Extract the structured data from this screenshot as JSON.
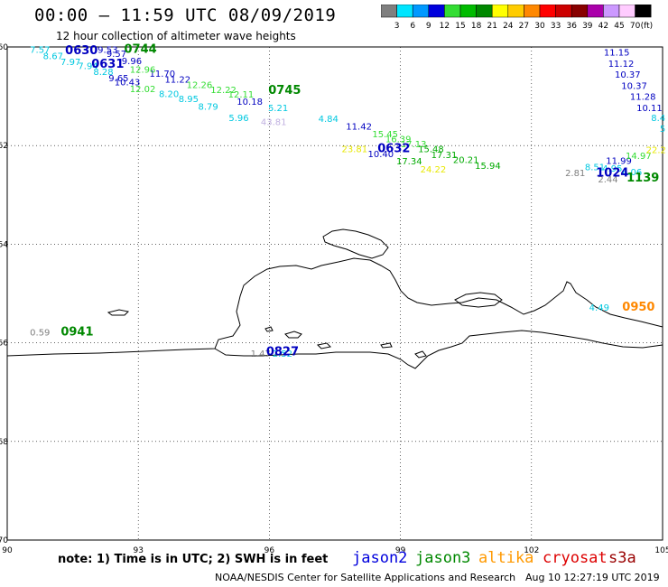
{
  "header": {
    "title": "00:00 – 11:59 UTC 08/09/2019",
    "subtitle": "12 hour collection of altimeter wave heights"
  },
  "legend": {
    "unit": "(ft)",
    "bins": [
      {
        "label": "3",
        "color": "#7f7f7f"
      },
      {
        "label": "6",
        "color": "#00e5ff"
      },
      {
        "label": "9",
        "color": "#0099ff"
      },
      {
        "label": "12",
        "color": "#0000dd"
      },
      {
        "label": "15",
        "color": "#33dd33"
      },
      {
        "label": "18",
        "color": "#00bb00"
      },
      {
        "label": "21",
        "color": "#008800"
      },
      {
        "label": "24",
        "color": "#ffff00"
      },
      {
        "label": "27",
        "color": "#ffcc00"
      },
      {
        "label": "30",
        "color": "#ff8800"
      },
      {
        "label": "33",
        "color": "#ff0000"
      },
      {
        "label": "36",
        "color": "#cc0000"
      },
      {
        "label": "39",
        "color": "#880000"
      },
      {
        "label": "42",
        "color": "#aa00aa"
      },
      {
        "label": "45",
        "color": "#cc99ff"
      },
      {
        "label": "70",
        "color": "#ffccff"
      },
      {
        "label": "",
        "color": "#000000"
      }
    ]
  },
  "axes": {
    "lon_ticks": [
      "90",
      "93",
      "96",
      "99",
      "102",
      "105"
    ],
    "lat_ticks": [
      "-60",
      "-62",
      "-64",
      "-66",
      "-68",
      "-70"
    ]
  },
  "observations": [
    {
      "text": "7.57",
      "lon": 90.75,
      "lat": -60.12,
      "color": "#00c8e0"
    },
    {
      "text": "8.67",
      "lon": 91.05,
      "lat": -60.25,
      "color": "#00c8e0"
    },
    {
      "text": "7.97",
      "lon": 91.45,
      "lat": -60.37,
      "color": "#00c8e0"
    },
    {
      "text": "7.94",
      "lon": 91.85,
      "lat": -60.45,
      "color": "#00c8e0"
    },
    {
      "text": "8.28",
      "lon": 92.2,
      "lat": -60.57,
      "color": "#00c8e0"
    },
    {
      "text": "9.53",
      "lon": 92.3,
      "lat": -60.12,
      "color": "#0000c0"
    },
    {
      "text": "9.57",
      "lon": 92.5,
      "lat": -60.2,
      "color": "#0000c0"
    },
    {
      "text": "9.96",
      "lon": 92.85,
      "lat": -60.35,
      "color": "#0000c0"
    },
    {
      "text": "9.65",
      "lon": 92.55,
      "lat": -60.7,
      "color": "#0000c0"
    },
    {
      "text": "10.43",
      "lon": 92.75,
      "lat": -60.78,
      "color": "#0000c0"
    },
    {
      "text": "11.70",
      "lon": 93.55,
      "lat": -60.6,
      "color": "#0000c0"
    },
    {
      "text": "11.22",
      "lon": 93.9,
      "lat": -60.72,
      "color": "#0000c0"
    },
    {
      "text": "12.96",
      "lon": 93.1,
      "lat": -60.52,
      "color": "#33dd33"
    },
    {
      "text": "12.02",
      "lon": 93.1,
      "lat": -60.92,
      "color": "#33dd33"
    },
    {
      "text": "8.20",
      "lon": 93.7,
      "lat": -61.02,
      "color": "#00c8e0"
    },
    {
      "text": "8.95",
      "lon": 94.15,
      "lat": -61.12,
      "color": "#00c8e0"
    },
    {
      "text": "8.79",
      "lon": 94.6,
      "lat": -61.27,
      "color": "#00c8e0"
    },
    {
      "text": "12.26",
      "lon": 94.4,
      "lat": -60.83,
      "color": "#33dd33"
    },
    {
      "text": "12.22",
      "lon": 94.95,
      "lat": -60.93,
      "color": "#33dd33"
    },
    {
      "text": "12.11",
      "lon": 95.35,
      "lat": -61.03,
      "color": "#33dd33"
    },
    {
      "text": "10.18",
      "lon": 95.55,
      "lat": -61.17,
      "color": "#0000c0"
    },
    {
      "text": "5.21",
      "lon": 96.2,
      "lat": -61.3,
      "color": "#00c8e0"
    },
    {
      "text": "5.96",
      "lon": 95.3,
      "lat": -61.5,
      "color": "#00c8e0"
    },
    {
      "text": "43.81",
      "lon": 96.1,
      "lat": -61.58,
      "color": "#c0b0e0"
    },
    {
      "text": "4.84",
      "lon": 97.35,
      "lat": -61.52,
      "color": "#00c8e0"
    },
    {
      "text": "11.42",
      "lon": 98.05,
      "lat": -61.68,
      "color": "#0000c0"
    },
    {
      "text": "15.45",
      "lon": 98.65,
      "lat": -61.83,
      "color": "#33dd33"
    },
    {
      "text": "16.39",
      "lon": 98.95,
      "lat": -61.93,
      "color": "#33dd33"
    },
    {
      "text": "10.40",
      "lon": 98.55,
      "lat": -62.23,
      "color": "#0000c0"
    },
    {
      "text": "23.81",
      "lon": 97.95,
      "lat": -62.13,
      "color": "#e8e800"
    },
    {
      "text": "17.13",
      "lon": 99.3,
      "lat": -62.03,
      "color": "#33dd33"
    },
    {
      "text": "15.48",
      "lon": 99.7,
      "lat": -62.13,
      "color": "#00aa00"
    },
    {
      "text": "17.31",
      "lon": 100.0,
      "lat": -62.25,
      "color": "#00aa00"
    },
    {
      "text": "17.34",
      "lon": 99.2,
      "lat": -62.38,
      "color": "#00aa00"
    },
    {
      "text": "20.21",
      "lon": 100.5,
      "lat": -62.35,
      "color": "#00aa00"
    },
    {
      "text": "15.94",
      "lon": 101.0,
      "lat": -62.47,
      "color": "#00aa00"
    },
    {
      "text": "24.22",
      "lon": 99.75,
      "lat": -62.55,
      "color": "#e8e800"
    },
    {
      "text": "11.15",
      "lon": 103.95,
      "lat": -60.17,
      "color": "#0000c0"
    },
    {
      "text": "11.12",
      "lon": 104.05,
      "lat": -60.4,
      "color": "#0000c0"
    },
    {
      "text": "10.37",
      "lon": 104.2,
      "lat": -60.62,
      "color": "#0000c0"
    },
    {
      "text": "10.37",
      "lon": 104.35,
      "lat": -60.85,
      "color": "#0000c0"
    },
    {
      "text": "11.28",
      "lon": 104.55,
      "lat": -61.07,
      "color": "#0000c0"
    },
    {
      "text": "10.11",
      "lon": 104.7,
      "lat": -61.3,
      "color": "#0000c0"
    },
    {
      "text": "8.4",
      "lon": 104.9,
      "lat": -61.5,
      "color": "#00c8e0"
    },
    {
      "text": "5",
      "lon": 105.0,
      "lat": -61.72,
      "color": "#00c8e0"
    },
    {
      "text": "11.99",
      "lon": 104.0,
      "lat": -62.37,
      "color": "#0000c0"
    },
    {
      "text": "14.97",
      "lon": 104.45,
      "lat": -62.27,
      "color": "#33dd33"
    },
    {
      "text": "22.2",
      "lon": 104.85,
      "lat": -62.15,
      "color": "#e8e800"
    },
    {
      "text": "8.51",
      "lon": 103.45,
      "lat": -62.5,
      "color": "#00c8e0"
    },
    {
      "text": "4.95",
      "lon": 103.85,
      "lat": -62.53,
      "color": "#00c8e0"
    },
    {
      "text": "6.06",
      "lon": 104.3,
      "lat": -62.6,
      "color": "#00c8e0"
    },
    {
      "text": "2.81",
      "lon": 103.0,
      "lat": -62.62,
      "color": "#7f7f7f"
    },
    {
      "text": "2.44",
      "lon": 103.75,
      "lat": -62.75,
      "color": "#7f7f7f"
    },
    {
      "text": "4.49",
      "lon": 103.55,
      "lat": -65.35,
      "color": "#00c8e0"
    },
    {
      "text": "0.59",
      "lon": 90.75,
      "lat": -65.85,
      "color": "#7f7f7f"
    },
    {
      "text": "1.47",
      "lon": 95.8,
      "lat": -66.28,
      "color": "#7f7f7f"
    },
    {
      "text": "2.52",
      "lon": 96.3,
      "lat": -66.28,
      "color": "#00c8e0"
    }
  ],
  "time_labels": [
    {
      "text": "0630",
      "lon": 91.7,
      "lat": -60.15,
      "color": "#0000c0"
    },
    {
      "text": "0744",
      "lon": 93.05,
      "lat": -60.12,
      "color": "#008800"
    },
    {
      "text": "0631",
      "lon": 92.3,
      "lat": -60.42,
      "color": "#0000c0"
    },
    {
      "text": "0745",
      "lon": 96.35,
      "lat": -60.95,
      "color": "#008800"
    },
    {
      "text": "0632",
      "lon": 98.85,
      "lat": -62.13,
      "color": "#0000c0"
    },
    {
      "text": "1024",
      "lon": 103.85,
      "lat": -62.63,
      "color": "#0000c0"
    },
    {
      "text": "1139",
      "lon": 104.55,
      "lat": -62.73,
      "color": "#008800"
    },
    {
      "text": "0950",
      "lon": 104.45,
      "lat": -65.35,
      "color": "#ff8800"
    },
    {
      "text": "0941",
      "lon": 91.6,
      "lat": -65.85,
      "color": "#008800"
    },
    {
      "text": "0827",
      "lon": 96.3,
      "lat": -66.25,
      "color": "#0000c0"
    }
  ],
  "footer": {
    "note": "note: 1) Time is in UTC; 2) SWH is in feet",
    "satellites": [
      {
        "name": "jason2",
        "color": "#0000dd"
      },
      {
        "name": "jason3",
        "color": "#008800"
      },
      {
        "name": "altika",
        "color": "#ff9900"
      },
      {
        "name": "cryosat",
        "color": "#dd0000"
      },
      {
        "name": "s3a",
        "color": "#990000"
      }
    ],
    "credit": "NOAA/NESDIS Center for Satellite Applications and Research",
    "timestamp": "Aug 10 12:27:19 UTC 2019"
  }
}
